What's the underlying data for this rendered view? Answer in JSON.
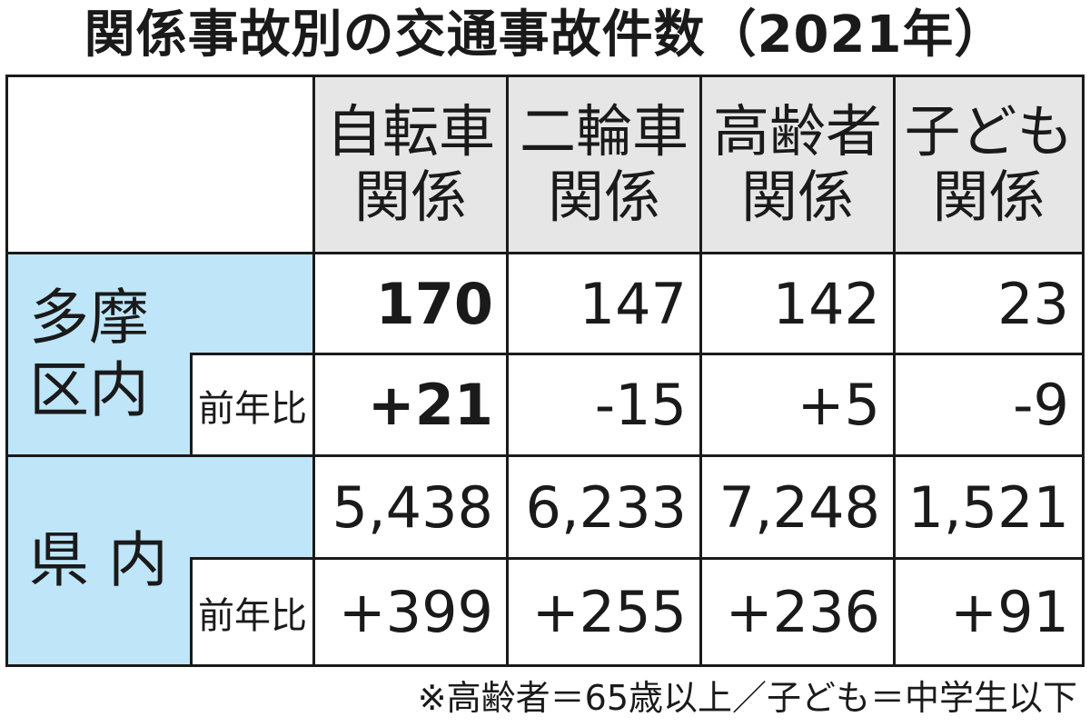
{
  "title": "関係事故別の交通事故件数（2021年）",
  "columns": [
    {
      "line1": "自転車",
      "line2": "関係"
    },
    {
      "line1": "二輪車",
      "line2": "関係"
    },
    {
      "line1": "高齢者",
      "line2": "関係"
    },
    {
      "line1": "子ども",
      "line2": "関係"
    }
  ],
  "rows": {
    "tama": {
      "label_line1": "多摩",
      "label_line2": "区内",
      "count": [
        "170",
        "147",
        "142",
        "23"
      ],
      "yoy_label": "前年比",
      "yoy": [
        "+21",
        "-15",
        "+5",
        "-9"
      ]
    },
    "ken": {
      "label": "県 内",
      "count": [
        "5,438",
        "6,233",
        "7,248",
        "1,521"
      ],
      "yoy_label": "前年比",
      "yoy": [
        "+399",
        "+255",
        "+236",
        "+91"
      ]
    }
  },
  "note": "※高齢者＝65歳以上／子ども＝中学生以下",
  "colors": {
    "header_bg": "#e6e6e6",
    "region_bg": "#bfe5f8",
    "border": "#1a1a1a"
  }
}
